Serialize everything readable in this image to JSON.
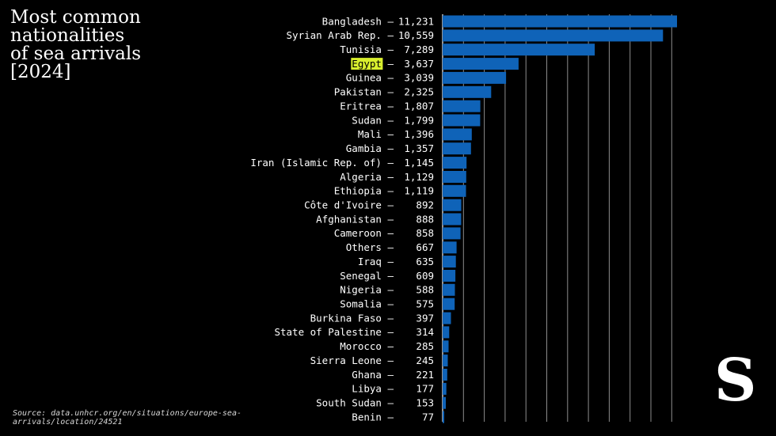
{
  "title_lines": [
    "Most common",
    "nationalities",
    "of sea arrivals",
    "[2024]"
  ],
  "source_text": "Source: data.unhcr.org/en/situations/europe-sea-arrivals/location/24521",
  "logo_text": "S",
  "colors": {
    "background": "#000000",
    "bar": "#0f63b8",
    "grid": "#ffffff",
    "text": "#ffffff",
    "highlight": "#d9ef2e",
    "highlight_text": "#000000"
  },
  "chart_data": {
    "type": "bar",
    "orientation": "horizontal",
    "title": "Most common nationalities of sea arrivals [2024]",
    "xlabel": "",
    "ylabel": "",
    "xlim": [
      0,
      11231
    ],
    "grid": true,
    "highlight_category": "Egypt",
    "categories": [
      "Bangladesh",
      "Syrian Arab Rep.",
      "Tunisia",
      "Egypt",
      "Guinea",
      "Pakistan",
      "Eritrea",
      "Sudan",
      "Mali",
      "Gambia",
      "Iran (Islamic Rep. of)",
      "Algeria",
      "Ethiopia",
      "Côte d'Ivoire",
      "Afghanistan",
      "Cameroon",
      "Others",
      "Iraq",
      "Senegal",
      "Nigeria",
      "Somalia",
      "Burkina Faso",
      "State of Palestine",
      "Morocco",
      "Sierra Leone",
      "Ghana",
      "Libya",
      "South Sudan",
      "Benin"
    ],
    "values": [
      11231,
      10559,
      7289,
      3637,
      3039,
      2325,
      1807,
      1799,
      1396,
      1357,
      1145,
      1129,
      1119,
      892,
      888,
      858,
      667,
      635,
      609,
      588,
      575,
      397,
      314,
      285,
      245,
      221,
      177,
      153,
      77
    ],
    "value_labels": [
      "11,231",
      "10,559",
      "7,289",
      "3,637",
      "3,039",
      "2,325",
      "1,807",
      "1,799",
      "1,396",
      "1,357",
      "1,145",
      "1,129",
      "1,119",
      "892",
      "888",
      "858",
      "667",
      "635",
      "609",
      "588",
      "575",
      "397",
      "314",
      "285",
      "245",
      "221",
      "177",
      "153",
      "77"
    ]
  }
}
